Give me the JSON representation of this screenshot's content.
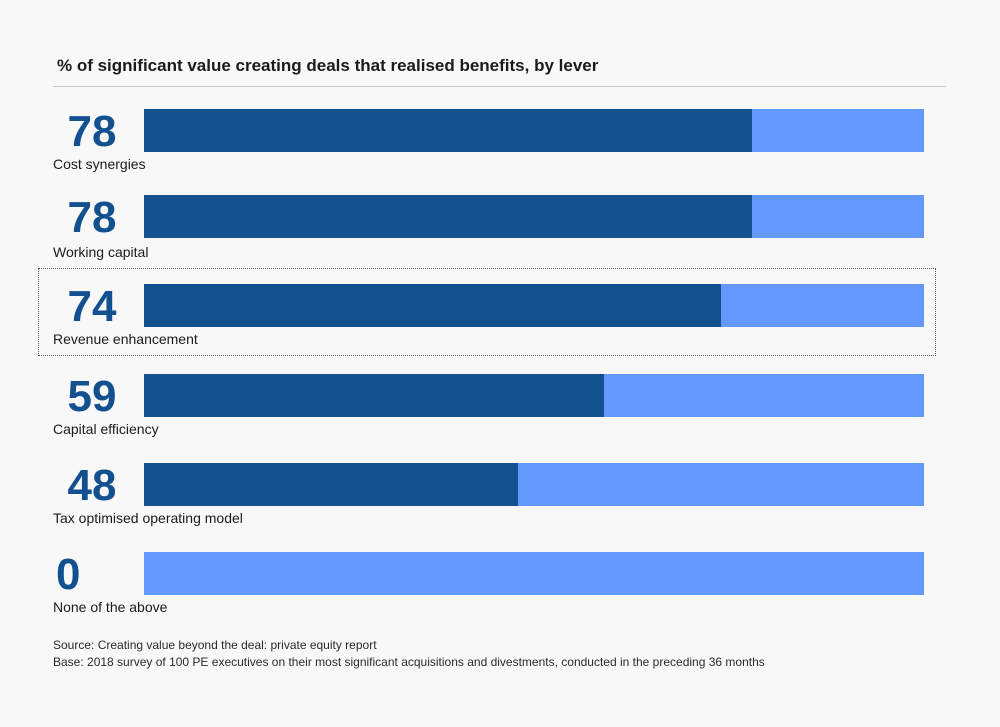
{
  "chart_data": {
    "type": "bar",
    "orientation": "horizontal",
    "title": "% of significant value creating deals that realised benefits, by lever",
    "categories": [
      "Cost synergies",
      "Working capital",
      "Revenue enhancement",
      "Capital efficiency",
      "Tax optimised operating model",
      "None of the above"
    ],
    "values": [
      78,
      78,
      74,
      59,
      48,
      0
    ],
    "value_labels": [
      "78",
      "78",
      "74",
      "59",
      "48",
      "0"
    ],
    "xlim": [
      0,
      100
    ],
    "colors": {
      "fill": "#13508e",
      "remainder": "#6499fb",
      "value_text": "#12508f"
    },
    "highlighted_category": "Revenue enhancement"
  },
  "footer": {
    "source": "Source: Creating value beyond the deal: private equity report",
    "base": "Base: 2018 survey of 100 PE executives on their most significant acquisitions and divestments, conducted in the preceding 36 months"
  }
}
